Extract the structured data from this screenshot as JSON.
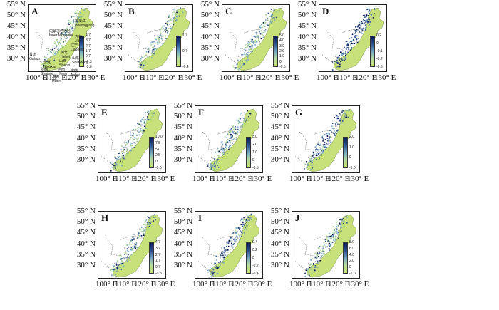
{
  "lat_labels": [
    "55° N",
    "50° N",
    "45° N",
    "40° N",
    "35° N",
    "30° N"
  ],
  "lon_labels": [
    "100° E",
    "110° E",
    "120° E",
    "130° E"
  ],
  "panels": [
    {
      "id": "A",
      "ticks": [
        "4.7",
        "3.7",
        "2.7",
        "1.7",
        "0.7",
        "-0.3",
        "-0.8"
      ],
      "dark": 0.1
    },
    {
      "id": "B",
      "ticks": [
        "1.7",
        "0.7",
        "-0.4"
      ],
      "dark": 0.25
    },
    {
      "id": "C",
      "ticks": [
        "5.0",
        "4.0",
        "3.0",
        "2.0",
        "1.0",
        "0",
        "-0.5"
      ],
      "dark": 0.15
    },
    {
      "id": "D",
      "ticks": [
        "0.2",
        "0",
        "-0.1",
        "-0.2",
        "-0.3"
      ],
      "dark": 0.8
    },
    {
      "id": "E",
      "ticks": [
        "10.0",
        "7.5",
        "5.0",
        "2.5",
        "0",
        "-0.6"
      ],
      "dark": 0.2
    },
    {
      "id": "F",
      "ticks": [
        "3.0",
        "2.0",
        "1.0",
        "0",
        "-0.5"
      ],
      "dark": 0.3
    },
    {
      "id": "G",
      "ticks": [
        "2.0",
        "1.0",
        "0",
        "-1.0"
      ],
      "dark": 0.55
    },
    {
      "id": "H",
      "ticks": [
        "4.7",
        "3.7",
        "2.7",
        "1.7",
        "0.7",
        "-0.8"
      ],
      "dark": 0.35
    },
    {
      "id": "I",
      "ticks": [
        "0.4",
        "0.2",
        "0",
        "-0.2",
        "-0.4"
      ],
      "dark": 0.5
    },
    {
      "id": "J",
      "ticks": [
        "8.0",
        "6.0",
        "4.0",
        "2.0",
        "0",
        "-1.0"
      ],
      "dark": 0.3
    }
  ],
  "provinces": [
    {
      "name": "黑龙江",
      "sub": "Heilongjiang"
    },
    {
      "name": "吉林",
      "sub": "Jilin"
    },
    {
      "name": "辽宁",
      "sub": "Liaoning"
    },
    {
      "name": "内蒙古自治区",
      "sub": "Inner Mongolia"
    },
    {
      "name": "甘肃",
      "sub": "Gansu"
    },
    {
      "name": "宁夏",
      "sub": "Ningxia"
    },
    {
      "name": "山西",
      "sub": "Shanxi"
    },
    {
      "name": "河北",
      "sub": "Hebei"
    },
    {
      "name": "山东",
      "sub": "Shandong"
    },
    {
      "name": "陕西",
      "sub": "Shaanxi"
    },
    {
      "name": "河南",
      "sub": "Henan"
    },
    {
      "name": "安徽",
      "sub": "Anhui"
    },
    {
      "name": "湖北",
      "sub": "Hubei"
    }
  ]
}
